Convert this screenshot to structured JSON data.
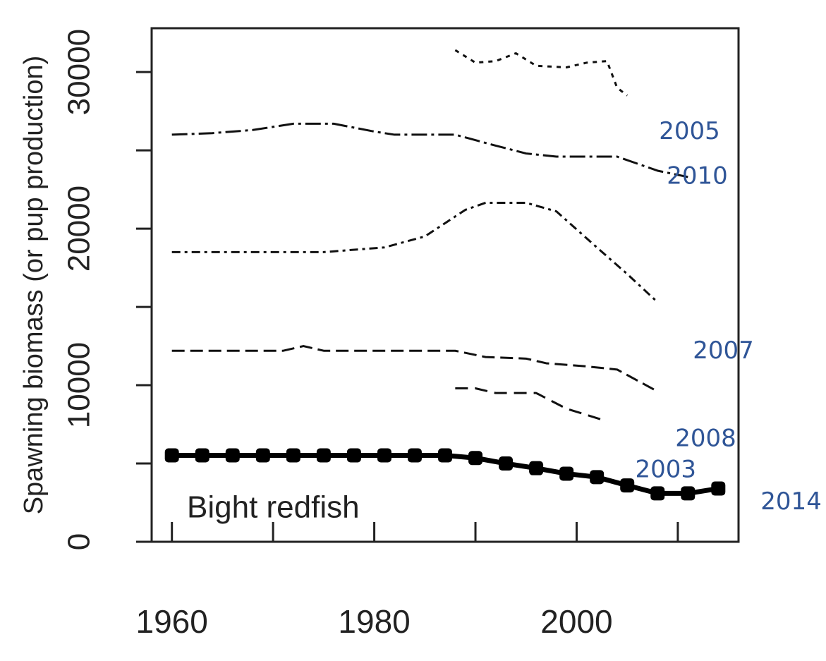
{
  "chart_data": {
    "type": "line",
    "ylabel": "Spawning biomass (or pup production)",
    "annotation": "Bight redfish",
    "xlim": [
      1958,
      2016
    ],
    "xticks": [
      1960,
      1980,
      2000
    ],
    "xminor_ticks": [
      1970,
      1990,
      2010
    ],
    "ylim": [
      0,
      32800
    ],
    "yticks": [
      0,
      10000,
      20000,
      30000
    ],
    "yminor_ticks": [
      5000,
      15000,
      25000
    ],
    "series": [
      {
        "name": "2005",
        "color": "#111111",
        "dash": "6,7",
        "width": 3,
        "x": [
          1988,
          1990,
          1992,
          1994,
          1996,
          1999,
          2001,
          2003,
          2004,
          2005
        ],
        "values": [
          31400,
          30600,
          30700,
          31200,
          30400,
          30300,
          30600,
          30700,
          29000,
          28500
        ]
      },
      {
        "name": "2010",
        "color": "#111111",
        "dash": "22,6,4,6",
        "width": 3,
        "x": [
          1960,
          1964,
          1968,
          1972,
          1976,
          1980,
          1982,
          1988,
          1992,
          1995,
          1998,
          2004,
          2008,
          2011
        ],
        "values": [
          26000,
          26100,
          26300,
          26700,
          26700,
          26200,
          26000,
          26000,
          25300,
          24800,
          24600,
          24600,
          23700,
          23300
        ]
      },
      {
        "name": "2007",
        "color": "#111111",
        "dash": "12,6,4,6",
        "width": 3,
        "x": [
          1960,
          1975,
          1981,
          1985,
          1989,
          1991,
          1995,
          1998,
          2002,
          2005,
          2008
        ],
        "values": [
          18500,
          18500,
          18800,
          19500,
          21200,
          21650,
          21650,
          21100,
          18800,
          17100,
          15300
        ]
      },
      {
        "name": "2008",
        "color": "#111111",
        "dash": "18,8",
        "width": 3,
        "x": [
          1960,
          1971,
          1973,
          1975,
          1988,
          1991,
          1995,
          1997,
          2001,
          2004,
          2008
        ],
        "values": [
          12200,
          12200,
          12500,
          12200,
          12200,
          11800,
          11700,
          11400,
          11200,
          11000,
          9600
        ]
      },
      {
        "name": "2003",
        "color": "#111111",
        "dash": "18,10",
        "width": 3,
        "x": [
          1988,
          1990,
          1992,
          1996,
          1999,
          2003
        ],
        "values": [
          9800,
          9800,
          9500,
          9500,
          8500,
          7700
        ]
      },
      {
        "name": "2014",
        "color": "#000000",
        "dash": "none",
        "width": 7,
        "markers": true,
        "x": [
          1960,
          1963,
          1966,
          1969,
          1972,
          1975,
          1978,
          1981,
          1984,
          1987,
          1990,
          1993,
          1996,
          1999,
          2002,
          2005,
          2008,
          2011,
          2014
        ],
        "values": [
          5520,
          5520,
          5520,
          5520,
          5520,
          5520,
          5520,
          5520,
          5520,
          5520,
          5350,
          5000,
          4700,
          4350,
          4130,
          3600,
          3090,
          3090,
          3400
        ]
      }
    ]
  }
}
